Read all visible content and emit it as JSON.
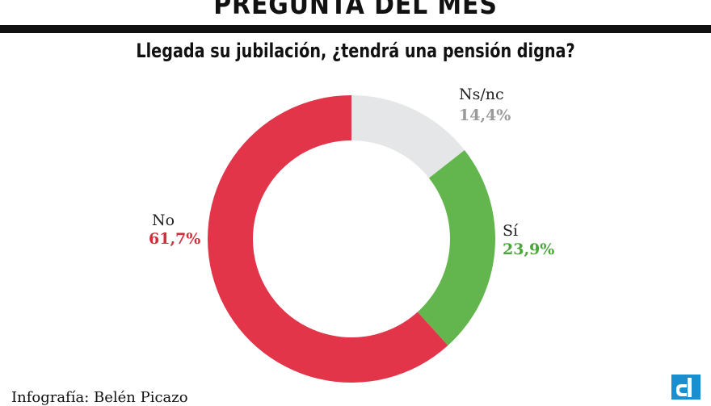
{
  "header": {
    "title": "PREGUNTA DEL MES"
  },
  "chart_data": {
    "type": "pie",
    "style": "donut",
    "title": "Llegada su jubilación, ¿tendrá una pensión digna?",
    "slices": [
      {
        "label": "Ns/nc",
        "value": 14.4,
        "value_text": "14,4%",
        "color": "#e5e6e8",
        "text_color": "#9a9a9a"
      },
      {
        "label": "Sí",
        "value": 23.9,
        "value_text": "23,9%",
        "color": "#63b64e",
        "text_color": "#4aa63a"
      },
      {
        "label": "No",
        "value": 61.7,
        "value_text": "61,7%",
        "color": "#e2354a",
        "text_color": "#d62c3c"
      }
    ]
  },
  "footer": {
    "credit": "Infografía: Belén Picazo",
    "logo_color": "#1a8fcf"
  }
}
